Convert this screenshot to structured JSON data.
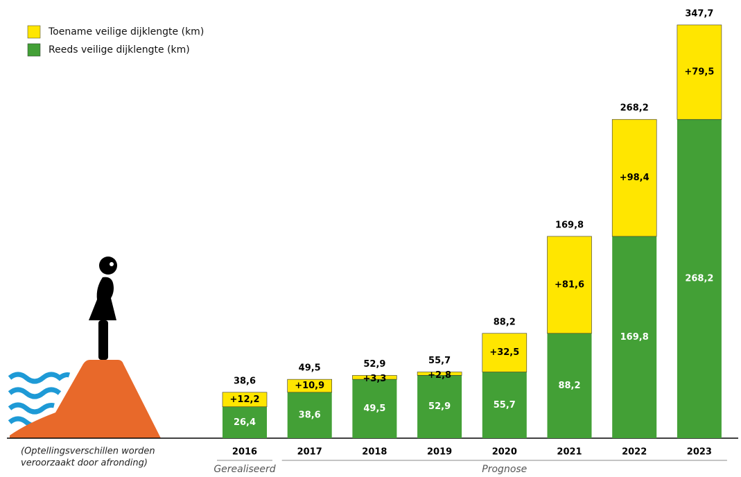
{
  "chart_data": {
    "type": "stacked-bar",
    "legend": "top-left",
    "note": [
      "(Optellingsverschillen worden",
      "veroorzaakt door afronding)"
    ],
    "categories": [
      "2016",
      "2017",
      "2018",
      "2019",
      "2020",
      "2021",
      "2022",
      "2023"
    ],
    "periods": [
      {
        "label": "Gerealiseerd",
        "from": 0,
        "to": 0
      },
      {
        "label": "Prognose",
        "from": 1,
        "to": 7
      }
    ],
    "series": [
      {
        "name": "Reeds veilige dijklengte (km)",
        "color": "#43a036",
        "values": [
          26.4,
          38.6,
          49.5,
          52.9,
          55.7,
          88.2,
          169.8,
          268.2
        ],
        "value_labels": [
          "26,4",
          "38,6",
          "49,5",
          "52,9",
          "55,7",
          "88,2",
          "169,8",
          "268,2"
        ]
      },
      {
        "name": "Toename veilige dijklengte (km)",
        "color": "#ffe600",
        "values": [
          12.2,
          10.9,
          3.3,
          2.8,
          32.5,
          81.6,
          98.4,
          79.5
        ],
        "value_labels": [
          "+12,2",
          "+10,9",
          "+3,3",
          "+2,8",
          "+32,5",
          "+81,6",
          "+98,4",
          "+79,5"
        ]
      }
    ],
    "totals": {
      "values": [
        38.6,
        49.5,
        52.9,
        55.7,
        88.2,
        169.8,
        268.2,
        347.7
      ],
      "value_labels": [
        "38,6",
        "49,5",
        "52,9",
        "55,7",
        "88,2",
        "169,8",
        "268,2",
        "347,7"
      ]
    },
    "ylim": [
      0,
      350
    ]
  }
}
